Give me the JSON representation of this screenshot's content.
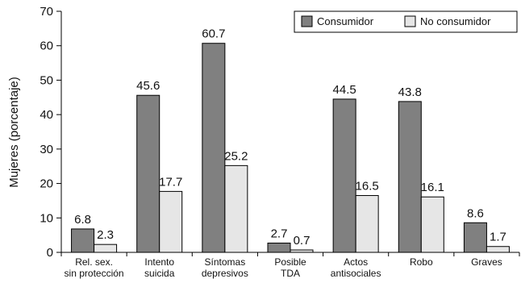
{
  "chart_data": {
    "type": "bar",
    "title": "",
    "xlabel": "",
    "ylabel": "Mujeres (porcentaje)",
    "ylim": [
      0,
      70
    ],
    "yticks": [
      0,
      10,
      20,
      30,
      40,
      50,
      60,
      70
    ],
    "grid": false,
    "legend_position": "top-right",
    "categories": [
      [
        "Rel. sex.",
        "sin protección"
      ],
      [
        "Intento",
        "suicida"
      ],
      [
        "Síntomas",
        "depresivos"
      ],
      [
        "Posible",
        "TDA"
      ],
      [
        "Actos",
        "antisociales"
      ],
      [
        "Robo"
      ],
      [
        "Graves"
      ]
    ],
    "series": [
      {
        "name": "Consumidor",
        "color": "#808080",
        "values": [
          6.8,
          45.6,
          60.7,
          2.7,
          44.5,
          43.8,
          8.6
        ],
        "labels": [
          "6.8",
          "45.6",
          "60.7",
          "2.7",
          "44.5",
          "43.8",
          "8.6"
        ]
      },
      {
        "name": "No consumidor",
        "color": "#e6e6e6",
        "values": [
          2.3,
          17.7,
          25.2,
          0.7,
          16.5,
          16.1,
          1.7
        ],
        "labels": [
          "2.3",
          "17.7",
          "25.2",
          "0.7",
          "16.5",
          "16.1",
          "1.7"
        ]
      }
    ]
  }
}
